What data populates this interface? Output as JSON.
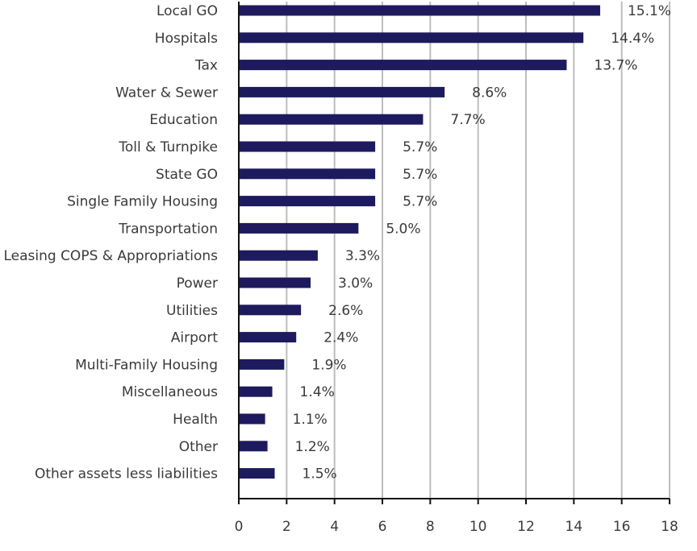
{
  "chart_data": {
    "type": "bar",
    "orientation": "horizontal",
    "categories": [
      "Local GO",
      "Hospitals",
      "Tax",
      "Water & Sewer",
      "Education",
      "Toll & Turnpike",
      "State GO",
      "Single Family Housing",
      "Transportation",
      "Leasing COPS & Appropriations",
      "Power",
      "Utilities",
      "Airport",
      "Multi-Family Housing",
      "Miscellaneous",
      "Health",
      "Other",
      "Other assets less liabilities"
    ],
    "values": [
      15.1,
      14.4,
      13.7,
      8.6,
      7.7,
      5.7,
      5.7,
      5.7,
      5.0,
      3.3,
      3.0,
      2.6,
      2.4,
      1.9,
      1.4,
      1.1,
      1.2,
      1.5
    ],
    "value_labels": [
      "15.1%",
      "14.4%",
      "13.7%",
      "8.6%",
      "7.7%",
      "5.7%",
      "5.7%",
      "5.7%",
      "5.0%",
      "3.3%",
      "3.0%",
      "2.6%",
      "2.4%",
      "1.9%",
      "1.4%",
      "1.1%",
      "1.2%",
      "1.5%"
    ],
    "title": "",
    "xlabel": "",
    "ylabel": "",
    "xlim": [
      0,
      18
    ],
    "x_ticks": [
      0,
      2,
      4,
      6,
      8,
      10,
      12,
      14,
      16,
      18
    ],
    "x_tick_labels": [
      "0",
      "2",
      "4",
      "6",
      "8",
      "10",
      "12",
      "14",
      "16",
      "18"
    ],
    "grid": "vertical",
    "legend": "none",
    "colors": {
      "bar": "#1e1a5e",
      "grid": "#bdbdbd",
      "axis": "#111111",
      "text": "#3a3a3a"
    }
  }
}
